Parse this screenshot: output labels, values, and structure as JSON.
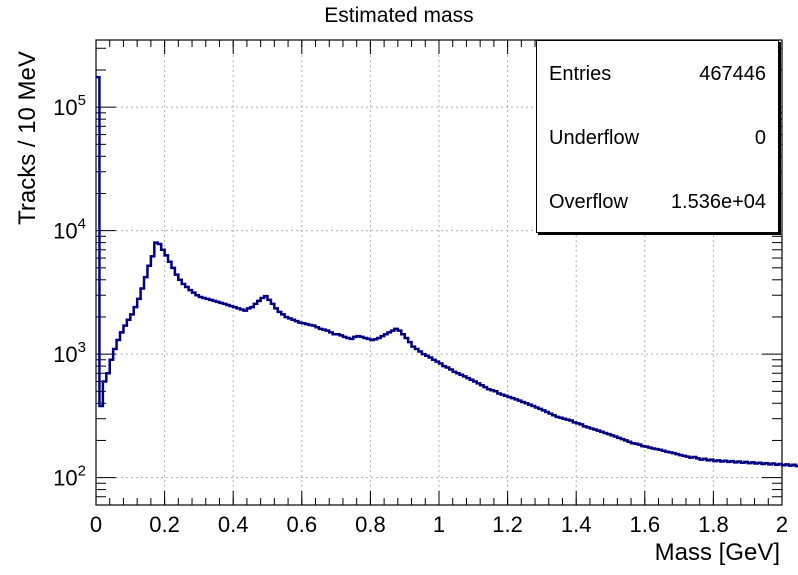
{
  "chart_data": {
    "type": "line",
    "style": "step-histogram",
    "title": "Estimated mass",
    "xlabel": "Mass [GeV]",
    "ylabel": "Tracks / 10 MeV",
    "xlim": [
      0,
      2
    ],
    "ylim": [
      60,
      350000
    ],
    "yscale": "log",
    "grid": true,
    "line_color": "#000080",
    "x_ticks": [
      "0",
      "0.2",
      "0.4",
      "0.6",
      "0.8",
      "1",
      "1.2",
      "1.4",
      "1.6",
      "1.8",
      "2"
    ],
    "y_ticks": [
      {
        "value": 100,
        "mantissa": "10",
        "exp": "2"
      },
      {
        "value": 1000,
        "mantissa": "10",
        "exp": "3"
      },
      {
        "value": 10000,
        "mantissa": "10",
        "exp": "4"
      },
      {
        "value": 100000,
        "mantissa": "10",
        "exp": "5"
      }
    ],
    "bin_width": 0.01,
    "series": [
      {
        "values": [
          175000,
          380,
          600,
          700,
          900,
          1100,
          1300,
          1500,
          1700,
          1900,
          2100,
          2400,
          2800,
          3400,
          4200,
          5200,
          6200,
          8000,
          7800,
          7000,
          6300,
          5600,
          5000,
          4400,
          4000,
          3700,
          3500,
          3300,
          3150,
          3000,
          2900,
          2850,
          2800,
          2750,
          2700,
          2650,
          2600,
          2550,
          2500,
          2450,
          2400,
          2350,
          2300,
          2250,
          2350,
          2400,
          2550,
          2700,
          2850,
          2950,
          2750,
          2550,
          2350,
          2200,
          2100,
          2000,
          1950,
          1900,
          1850,
          1800,
          1780,
          1750,
          1720,
          1700,
          1650,
          1600,
          1580,
          1550,
          1500,
          1450,
          1450,
          1420,
          1380,
          1350,
          1330,
          1380,
          1400,
          1380,
          1350,
          1330,
          1300,
          1320,
          1350,
          1400,
          1450,
          1500,
          1550,
          1600,
          1550,
          1450,
          1350,
          1250,
          1150,
          1100,
          1050,
          1000,
          970,
          940,
          900,
          870,
          840,
          800,
          780,
          750,
          720,
          700,
          680,
          660,
          640,
          620,
          600,
          580,
          560,
          540,
          520,
          510,
          500,
          480,
          470,
          460,
          450,
          440,
          430,
          420,
          410,
          400,
          390,
          380,
          370,
          360,
          350,
          340,
          330,
          320,
          310,
          305,
          300,
          295,
          290,
          280,
          275,
          270,
          260,
          255,
          250,
          245,
          240,
          235,
          230,
          225,
          220,
          215,
          210,
          205,
          200,
          195,
          190,
          188,
          185,
          180,
          178,
          175,
          172,
          170,
          168,
          165,
          162,
          160,
          158,
          155,
          152,
          150,
          148,
          145,
          147,
          143,
          140,
          142,
          138,
          140,
          136,
          138,
          135,
          137,
          134,
          136,
          133,
          135,
          132,
          134,
          131,
          133,
          130,
          132,
          129,
          131,
          128,
          130,
          127,
          129,
          126,
          128,
          125,
          127,
          124,
          126,
          123,
          125,
          122,
          124
        ]
      }
    ]
  },
  "stats_box": {
    "rows": [
      {
        "key": "Entries",
        "value": "467446"
      },
      {
        "key": "Underflow",
        "value": "0"
      },
      {
        "key": "Overflow",
        "value": "1.536e+04"
      }
    ]
  }
}
